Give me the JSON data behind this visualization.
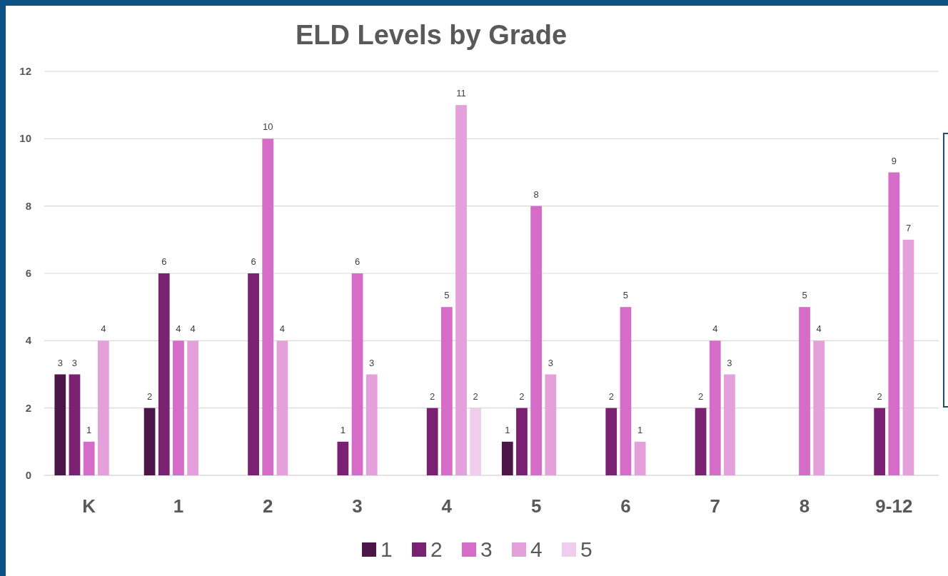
{
  "chart_data": {
    "type": "bar",
    "title": "ELD Levels by Grade",
    "categories": [
      "K",
      "1",
      "2",
      "3",
      "4",
      "5",
      "6",
      "7",
      "8",
      "9-12"
    ],
    "series": [
      {
        "name": "1",
        "color": "#4d1648",
        "values": [
          3,
          2,
          null,
          null,
          null,
          1,
          null,
          null,
          null,
          null
        ]
      },
      {
        "name": "2",
        "color": "#7b2171",
        "values": [
          3,
          6,
          6,
          1,
          2,
          2,
          2,
          2,
          null,
          2
        ]
      },
      {
        "name": "3",
        "color": "#d46cc8",
        "values": [
          1,
          4,
          10,
          6,
          5,
          8,
          5,
          4,
          5,
          9
        ]
      },
      {
        "name": "4",
        "color": "#e3a0da",
        "values": [
          4,
          4,
          4,
          3,
          11,
          3,
          1,
          3,
          4,
          7
        ]
      },
      {
        "name": "5",
        "color": "#f0cdec",
        "values": [
          null,
          null,
          null,
          null,
          2,
          null,
          null,
          null,
          null,
          null
        ]
      }
    ],
    "ylim": [
      0,
      12
    ],
    "yticks": [
      0,
      2,
      4,
      6,
      8,
      10,
      12
    ],
    "grid": "y",
    "legend": "bottom",
    "data_labels": true
  }
}
